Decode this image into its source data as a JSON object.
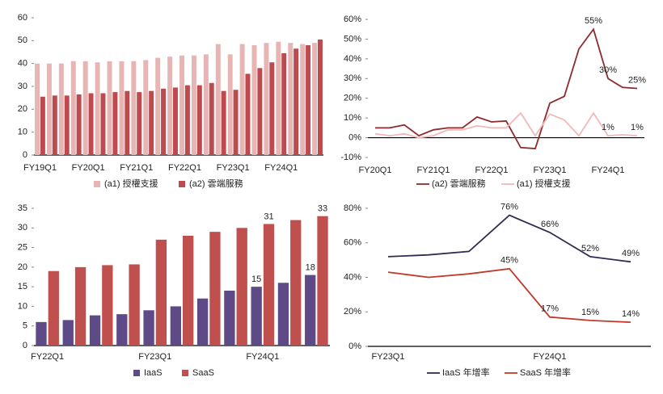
{
  "chart_data": [
    {
      "type": "bar",
      "categories": [
        "FY19Q1",
        null,
        null,
        null,
        "FY20Q1",
        null,
        null,
        null,
        "FY21Q1",
        null,
        null,
        null,
        "FY22Q1",
        null,
        null,
        null,
        "FY23Q1",
        null,
        null,
        null,
        "FY24Q1",
        null,
        null,
        null
      ],
      "series": [
        {
          "name": "(a1) 授權支援",
          "color": "#e8b5b5",
          "values": [
            40,
            40,
            40,
            41,
            41,
            40.5,
            41,
            41,
            41,
            41.5,
            42.5,
            43,
            43.5,
            43.5,
            44,
            48.5,
            44,
            48.5,
            48,
            49,
            49.5,
            49,
            48.5,
            49
          ]
        },
        {
          "name": "(a2) 雲端服務",
          "color": "#bd4a4e",
          "values": [
            25.5,
            26,
            26,
            26.5,
            27,
            27,
            27.5,
            28,
            27.5,
            28,
            29,
            29.5,
            30.5,
            30.5,
            31.5,
            28,
            28.5,
            35.5,
            38,
            40.5,
            44.5,
            46.5,
            48,
            50.5
          ]
        }
      ],
      "ylim": [
        0,
        60
      ],
      "yticks": [
        0,
        10,
        20,
        30,
        40,
        50,
        60
      ]
    },
    {
      "type": "line",
      "categories": [
        "FY20Q1",
        null,
        null,
        null,
        "FY21Q1",
        null,
        null,
        null,
        "FY22Q1",
        null,
        null,
        null,
        "FY23Q1",
        null,
        null,
        null,
        "FY24Q1",
        null,
        null
      ],
      "series": [
        {
          "name": "(a2) 雲端服務",
          "color": "#8e2b2e",
          "values": [
            5,
            5,
            6.5,
            1,
            4,
            5,
            5,
            10.5,
            8,
            8.5,
            -5,
            -5.5,
            17.5,
            21,
            45,
            55,
            30,
            25.5,
            25
          ],
          "value_labels": [
            null,
            null,
            null,
            null,
            null,
            null,
            null,
            null,
            null,
            null,
            null,
            null,
            null,
            null,
            null,
            "55%",
            "30%",
            null,
            "25%"
          ]
        },
        {
          "name": "(a1) 授權支援",
          "color": "#f0b9b9",
          "values": [
            2,
            1,
            2,
            0,
            1,
            4,
            4,
            6,
            5,
            5,
            12.5,
            1,
            12,
            9,
            1,
            12.5,
            1,
            1.5,
            1
          ],
          "value_labels": [
            null,
            null,
            null,
            null,
            null,
            null,
            null,
            null,
            null,
            null,
            null,
            null,
            null,
            null,
            null,
            null,
            "1%",
            null,
            "1%"
          ]
        }
      ],
      "ylim": [
        -10,
        60
      ],
      "yticks": [
        {
          "value": -10,
          "label": "-10%"
        },
        {
          "value": 0,
          "label": "0%"
        },
        {
          "value": 10,
          "label": "10%"
        },
        {
          "value": 20,
          "label": "20%"
        },
        {
          "value": 30,
          "label": "30%"
        },
        {
          "value": 40,
          "label": "40%"
        },
        {
          "value": 50,
          "label": "50%"
        },
        {
          "value": 60,
          "label": "60%"
        }
      ]
    },
    {
      "type": "bar",
      "categories": [
        "FY22Q1",
        null,
        null,
        null,
        "FY23Q1",
        null,
        null,
        null,
        "FY24Q1",
        null,
        null
      ],
      "series": [
        {
          "name": "IaaS",
          "color": "#5e4a86",
          "values": [
            6,
            6.5,
            7.7,
            8,
            9,
            10,
            12,
            14,
            15,
            16,
            18
          ],
          "value_labels": [
            null,
            null,
            null,
            null,
            null,
            null,
            null,
            null,
            "15",
            null,
            "18"
          ]
        },
        {
          "name": "SaaS",
          "color": "#c0504d",
          "values": [
            19,
            20,
            20.5,
            20.7,
            27,
            28,
            29,
            30,
            31,
            32,
            33
          ],
          "value_labels": [
            null,
            null,
            null,
            null,
            null,
            null,
            null,
            null,
            "31",
            null,
            "33"
          ]
        }
      ],
      "ylim": [
        0,
        35
      ],
      "yticks": [
        0,
        5,
        10,
        15,
        20,
        25,
        30,
        35
      ]
    },
    {
      "type": "line",
      "categories": [
        "FY23Q1",
        null,
        null,
        null,
        "FY24Q1",
        null,
        null
      ],
      "series": [
        {
          "name": "IaaS 年增率",
          "color": "#2f2d52",
          "values": [
            52,
            53,
            55,
            76,
            66,
            52,
            49
          ],
          "value_labels": [
            null,
            null,
            null,
            "76%",
            "66%",
            "52%",
            "49%"
          ]
        },
        {
          "name": "SaaS 年增率",
          "color": "#c0392b",
          "values": [
            43,
            40,
            42,
            45,
            17,
            15,
            14
          ],
          "value_labels": [
            null,
            null,
            null,
            "45%",
            "17%",
            "15%",
            "14%"
          ]
        }
      ],
      "ylim": [
        0,
        80
      ],
      "yticks": [
        {
          "value": 0,
          "label": "0%"
        },
        {
          "value": 20,
          "label": "20%"
        },
        {
          "value": 40,
          "label": "40%"
        },
        {
          "value": 60,
          "label": "60%"
        },
        {
          "value": 80,
          "label": "80%"
        }
      ]
    }
  ]
}
